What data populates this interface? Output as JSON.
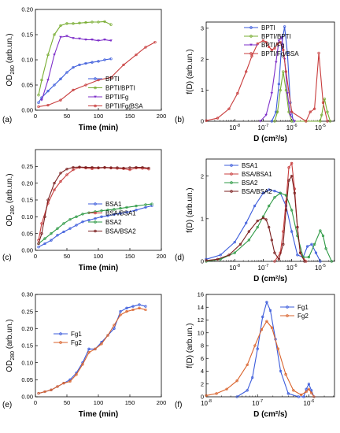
{
  "figure": {
    "panel_labels": [
      "(a)",
      "(b)",
      "(c)",
      "(d)",
      "(e)",
      "(f)"
    ]
  },
  "chart_data": [
    {
      "panel": "(a)",
      "type": "line",
      "xlabel": "Time  (min)",
      "ylabel_main": "OD",
      "ylabel_sub": "280",
      "ylabel_unit": "(arb.un.)",
      "xlim": [
        0,
        200
      ],
      "ylim": [
        0,
        0.2
      ],
      "xticks": [
        0,
        50,
        100,
        150,
        200
      ],
      "yticks": [
        0,
        0.05,
        0.1,
        0.15,
        0.2
      ],
      "ytick_labels": [
        "0.00",
        "0.05",
        "0.10",
        "0.15",
        "0.20"
      ],
      "legend_position": "center-right",
      "grid": false,
      "x_scale": "linear",
      "series": [
        {
          "name": "BPTI",
          "color": "#3b5bdb",
          "marker": "o",
          "x": [
            5,
            10,
            20,
            30,
            40,
            50,
            60,
            70,
            80,
            90,
            100,
            110,
            120
          ],
          "y": [
            0.015,
            0.025,
            0.038,
            0.05,
            0.062,
            0.075,
            0.085,
            0.09,
            0.093,
            0.095,
            0.097,
            0.1,
            0.102
          ]
        },
        {
          "name": "BPTI/BPTI",
          "color": "#77ac30",
          "marker": "o",
          "x": [
            5,
            10,
            20,
            30,
            40,
            50,
            60,
            70,
            80,
            90,
            100,
            110,
            120
          ],
          "y": [
            0.03,
            0.06,
            0.11,
            0.15,
            0.168,
            0.172,
            0.172,
            0.173,
            0.174,
            0.175,
            0.175,
            0.176,
            0.17
          ]
        },
        {
          "name": "BPTI/Fg",
          "color": "#7e2fc9",
          "marker": "v",
          "x": [
            10,
            20,
            30,
            40,
            50,
            60,
            70,
            80,
            90,
            100,
            110,
            120
          ],
          "y": [
            0.02,
            0.06,
            0.11,
            0.145,
            0.147,
            0.143,
            0.142,
            0.14,
            0.14,
            0.138,
            0.14,
            0.138
          ]
        },
        {
          "name": "BPTI/Fg/BSA",
          "color": "#c83c3c",
          "marker": "o",
          "x": [
            5,
            20,
            40,
            60,
            80,
            100,
            120,
            140,
            160,
            175,
            190
          ],
          "y": [
            0.007,
            0.01,
            0.02,
            0.04,
            0.05,
            0.06,
            0.065,
            0.09,
            0.11,
            0.125,
            0.135
          ]
        }
      ]
    },
    {
      "panel": "(b)",
      "type": "line",
      "xlabel": "D  (cm²/s)",
      "ylabel_main": "f(D)",
      "ylabel_unit": "(arb.un.)",
      "x_scale": "log",
      "xlim_exp": [
        -9,
        -4.5
      ],
      "ylim": [
        0,
        3.2
      ],
      "xtick_exps": [
        -8,
        -7,
        -6,
        -5
      ],
      "yticks": [
        0,
        1,
        2,
        3
      ],
      "legend_position": "top-right",
      "grid": false,
      "series": [
        {
          "name": "BPTI",
          "color": "#3b5bdb",
          "marker": "o",
          "x_exp": [
            -6.7,
            -6.55,
            -6.45,
            -6.35,
            -6.25,
            -6.15,
            -6.05,
            -5.95
          ],
          "y": [
            0,
            0.3,
            1.2,
            2.5,
            3.05,
            2.2,
            0.6,
            0
          ]
        },
        {
          "name": "BPTI/BPTI",
          "color": "#77ac30",
          "marker": "o",
          "x_exp": [
            -6.6,
            -6.5,
            -6.4,
            -6.3,
            -6.2,
            -6.1,
            -6.0,
            -5.5,
            -5.0,
            -4.95,
            -4.85,
            -4.75,
            -4.65
          ],
          "y": [
            0,
            0.3,
            1.0,
            1.6,
            1.0,
            0.3,
            0,
            0,
            0,
            0.2,
            0.72,
            0.3,
            0
          ]
        },
        {
          "name": "BPTI/Fg",
          "color": "#7e2fc9",
          "marker": "v",
          "x_exp": [
            -7.1,
            -6.9,
            -6.7,
            -6.55,
            -6.45,
            -6.35,
            -6.25,
            -6.15,
            -6.05,
            -5.9
          ],
          "y": [
            0,
            0.2,
            0.9,
            1.9,
            2.6,
            2.7,
            2.0,
            0.9,
            0.2,
            0
          ]
        },
        {
          "name": "BPTI/Fg/BSA",
          "color": "#c83c3c",
          "marker": "o",
          "x_exp": [
            -9,
            -8.6,
            -8.2,
            -7.9,
            -7.6,
            -7.4,
            -7.2,
            -7.0,
            -6.9,
            -6.8,
            -6.7,
            -6.6,
            -6.5,
            -6.4,
            -6.3,
            -6.2,
            -6.0,
            -5.5,
            -5.35,
            -5.2,
            -5.05,
            -4.9,
            -4.75
          ],
          "y": [
            0.02,
            0.1,
            0.4,
            0.9,
            1.6,
            2.1,
            2.5,
            2.6,
            2.55,
            2.4,
            2.3,
            2.35,
            2.5,
            2.55,
            2.3,
            1.6,
            0.3,
            0,
            0.3,
            0.4,
            2.2,
            0.6,
            0
          ]
        }
      ]
    },
    {
      "panel": "(c)",
      "type": "line",
      "xlabel": "Time  (min)",
      "ylabel_main": "OD",
      "ylabel_sub": "280",
      "ylabel_unit": "(arb.un.)",
      "xlim": [
        0,
        200
      ],
      "ylim": [
        0,
        0.3
      ],
      "xticks": [
        0,
        50,
        100,
        150,
        200
      ],
      "yticks": [
        0,
        0.05,
        0.1,
        0.15,
        0.2,
        0.25
      ],
      "ytick_labels": [
        "0.00",
        "0.05",
        "0.10",
        "0.15",
        "0.20",
        "0.25"
      ],
      "legend_position": "bottom-right",
      "grid": false,
      "x_scale": "linear",
      "series": [
        {
          "name": "BSA1",
          "color": "#3b5bdb",
          "marker": "o",
          "x": [
            5,
            15,
            25,
            35,
            45,
            55,
            65,
            75,
            85,
            95,
            105,
            115,
            125,
            135,
            145,
            160,
            175,
            185
          ],
          "y": [
            0.01,
            0.02,
            0.03,
            0.045,
            0.055,
            0.065,
            0.075,
            0.085,
            0.09,
            0.095,
            0.1,
            0.103,
            0.107,
            0.11,
            0.113,
            0.12,
            0.128,
            0.133
          ]
        },
        {
          "name": "BSA/BSA1",
          "color": "#c83c3c",
          "marker": "o",
          "x": [
            5,
            10,
            20,
            30,
            40,
            50,
            60,
            70,
            80,
            90,
            100,
            110,
            120,
            130,
            140,
            150,
            160,
            170,
            180
          ],
          "y": [
            0.03,
            0.08,
            0.14,
            0.18,
            0.205,
            0.225,
            0.24,
            0.247,
            0.245,
            0.243,
            0.245,
            0.246,
            0.245,
            0.244,
            0.243,
            0.24,
            0.245,
            0.244,
            0.242
          ]
        },
        {
          "name": "BSA2",
          "color": "#2e9a45",
          "marker": "o",
          "x": [
            5,
            15,
            25,
            35,
            45,
            55,
            65,
            75,
            85,
            95,
            105,
            115,
            125,
            135,
            145,
            160,
            175,
            185
          ],
          "y": [
            0.02,
            0.035,
            0.05,
            0.065,
            0.08,
            0.092,
            0.1,
            0.108,
            0.112,
            0.115,
            0.118,
            0.12,
            0.122,
            0.125,
            0.128,
            0.132,
            0.136,
            0.138
          ]
        },
        {
          "name": "BSA/BSA2",
          "color": "#7a1e1e",
          "marker": "o",
          "x": [
            5,
            10,
            15,
            20,
            30,
            40,
            50,
            60,
            70,
            80,
            90,
            100,
            110,
            120,
            130,
            140,
            150,
            160,
            170,
            180
          ],
          "y": [
            0.02,
            0.05,
            0.1,
            0.15,
            0.2,
            0.23,
            0.242,
            0.247,
            0.248,
            0.247,
            0.247,
            0.246,
            0.247,
            0.246,
            0.246,
            0.245,
            0.246,
            0.247,
            0.247,
            0.245
          ]
        }
      ]
    },
    {
      "panel": "(d)",
      "type": "line",
      "xlabel": "D  (cm²/s)",
      "ylabel_main": "f(D)",
      "ylabel_unit": "(arb.un.)",
      "x_scale": "log",
      "xlim_exp": [
        -9,
        -4.5
      ],
      "ylim": [
        0,
        2.4
      ],
      "xtick_exps": [
        -8,
        -7,
        -6,
        -5
      ],
      "yticks": [
        0,
        1,
        2
      ],
      "legend_position": "top-left",
      "grid": false,
      "series": [
        {
          "name": "BSA1",
          "color": "#3b5bdb",
          "marker": "o",
          "x_exp": [
            -9,
            -8.5,
            -8.0,
            -7.6,
            -7.3,
            -7.0,
            -6.8,
            -6.6,
            -6.4,
            -6.2,
            -6.0,
            -5.8,
            -5.6,
            -5.45,
            -5.3,
            -5.15,
            -5.0
          ],
          "y": [
            0.05,
            0.15,
            0.45,
            0.9,
            1.3,
            1.6,
            1.68,
            1.65,
            1.6,
            1.3,
            0.7,
            0.15,
            0.1,
            0.35,
            0.4,
            0.2,
            0
          ]
        },
        {
          "name": "BSA/BSA1",
          "color": "#c83c3c",
          "marker": "o",
          "x_exp": [
            -6.6,
            -6.4,
            -6.3,
            -6.2,
            -6.1,
            -6.0,
            -5.9,
            -5.8,
            -5.7,
            -5.5
          ],
          "y": [
            0,
            0.2,
            0.7,
            1.4,
            2.2,
            2.3,
            1.7,
            0.8,
            0.2,
            0
          ]
        },
        {
          "name": "BSA2",
          "color": "#2e9a45",
          "marker": "o",
          "x_exp": [
            -9,
            -8.5,
            -8.0,
            -7.5,
            -7.2,
            -7.0,
            -6.8,
            -6.6,
            -6.4,
            -6.2,
            -6.0,
            -5.8,
            -5.6,
            -5.4,
            -5.2,
            -5.0,
            -4.9,
            -4.8,
            -4.6
          ],
          "y": [
            0,
            0.05,
            0.2,
            0.5,
            0.8,
            1.05,
            1.3,
            1.5,
            1.6,
            1.55,
            1.2,
            0.6,
            0.1,
            0.1,
            0.4,
            0.72,
            0.6,
            0.3,
            0
          ]
        },
        {
          "name": "BSA/BSA2",
          "color": "#7a1e1e",
          "marker": "o",
          "x_exp": [
            -9,
            -8.6,
            -8.2,
            -7.8,
            -7.5,
            -7.2,
            -7.0,
            -6.9,
            -6.8,
            -6.7,
            -6.6,
            -6.45,
            -6.3,
            -6.2,
            -6.1,
            -6.0,
            -5.9,
            -5.8,
            -5.7,
            -5.55
          ],
          "y": [
            0.02,
            0.05,
            0.15,
            0.4,
            0.7,
            0.95,
            1.02,
            0.98,
            0.8,
            0.5,
            0.2,
            0.05,
            0.4,
            1.2,
            1.9,
            2.0,
            1.6,
            0.8,
            0.2,
            0
          ]
        }
      ]
    },
    {
      "panel": "(e)",
      "type": "line",
      "xlabel": "Time  (min)",
      "ylabel_main": "OD",
      "ylabel_sub": "280",
      "ylabel_unit": "(arb.un.)",
      "xlim": [
        0,
        200
      ],
      "ylim": [
        0,
        0.3
      ],
      "xticks": [
        0,
        50,
        100,
        150,
        200
      ],
      "yticks": [
        0,
        0.05,
        0.1,
        0.15,
        0.2,
        0.25,
        0.3
      ],
      "ytick_labels": [
        "0.00",
        "0.05",
        "0.10",
        "0.15",
        "0.20",
        "0.25",
        "0.30"
      ],
      "legend_position": "top-left",
      "grid": false,
      "x_scale": "linear",
      "series": [
        {
          "name": "Fg1",
          "color": "#3b5bdb",
          "marker": "o",
          "x": [
            5,
            15,
            25,
            35,
            45,
            55,
            65,
            75,
            85,
            95,
            105,
            115,
            125,
            135,
            145,
            155,
            165,
            175
          ],
          "y": [
            0.01,
            0.015,
            0.02,
            0.03,
            0.04,
            0.05,
            0.07,
            0.1,
            0.14,
            0.14,
            0.16,
            0.18,
            0.2,
            0.25,
            0.26,
            0.265,
            0.27,
            0.265
          ]
        },
        {
          "name": "Fg2",
          "color": "#d9622b",
          "marker": "o",
          "x": [
            5,
            15,
            25,
            35,
            45,
            55,
            65,
            75,
            85,
            95,
            105,
            115,
            125,
            135,
            145,
            155,
            165,
            175
          ],
          "y": [
            0.01,
            0.015,
            0.02,
            0.03,
            0.04,
            0.045,
            0.065,
            0.095,
            0.13,
            0.14,
            0.155,
            0.18,
            0.21,
            0.24,
            0.25,
            0.255,
            0.26,
            0.255
          ]
        }
      ]
    },
    {
      "panel": "(f)",
      "type": "line",
      "xlabel": "D  (cm²/s)",
      "ylabel_main": "f(D)",
      "ylabel_unit": "(arb.un.)",
      "x_scale": "log",
      "xlim_exp": [
        -8,
        -5.5
      ],
      "ylim": [
        0,
        16
      ],
      "xtick_exps": [
        -8,
        -7,
        -6
      ],
      "yticks": [
        0,
        2,
        4,
        6,
        8,
        10,
        12,
        14,
        16
      ],
      "legend_position": "top-right",
      "grid": false,
      "series": [
        {
          "name": "Fg1",
          "color": "#3b5bdb",
          "marker": "o",
          "x_exp": [
            -7.4,
            -7.2,
            -7.1,
            -7.0,
            -6.9,
            -6.82,
            -6.75,
            -6.65,
            -6.55,
            -6.4,
            -6.2,
            -6.1,
            -6.05,
            -6.0,
            -5.95,
            -5.9
          ],
          "y": [
            0,
            1.0,
            3.0,
            7.5,
            12.5,
            14.8,
            13.5,
            9.0,
            4.0,
            0.5,
            0,
            0,
            1.2,
            2.0,
            1.0,
            0
          ]
        },
        {
          "name": "Fg2",
          "color": "#d9622b",
          "marker": "o",
          "x_exp": [
            -8,
            -7.8,
            -7.6,
            -7.4,
            -7.2,
            -7.05,
            -6.92,
            -6.82,
            -6.72,
            -6.6,
            -6.45,
            -6.3,
            -6.15,
            -6.05,
            -6.0,
            -5.95,
            -5.9
          ],
          "y": [
            0.2,
            0.5,
            1.2,
            2.5,
            5.0,
            8.0,
            10.5,
            11.8,
            10.8,
            7.5,
            3.5,
            1.0,
            0.3,
            0.8,
            1.2,
            0.6,
            0
          ]
        }
      ]
    }
  ]
}
